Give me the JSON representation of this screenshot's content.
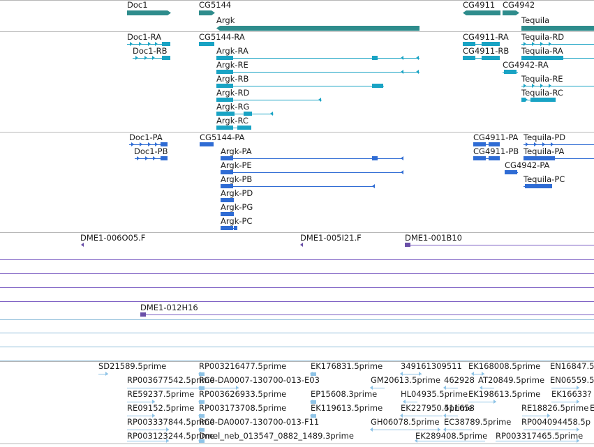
{
  "colors": {
    "gene": "#2e8c8c",
    "mrna": "#19a3c4",
    "cds": "#2f6cd4",
    "clone": "#6a4fa8",
    "clone_line": "#7a5cc2",
    "est_line": "#8fbdd9",
    "est": "#8ec3e6",
    "separator": "#b6b6b6"
  },
  "tracks": {
    "gene": {
      "features": [
        {
          "name": "Doc1"
        },
        {
          "name": "CG5144"
        },
        {
          "name": "Argk"
        },
        {
          "name": "CG4911"
        },
        {
          "name": "CG4942"
        },
        {
          "name": "Tequila"
        }
      ]
    },
    "mrna": {
      "features": [
        {
          "name": "Doc1-RA"
        },
        {
          "name": "Doc1-RB"
        },
        {
          "name": "CG5144-RA"
        },
        {
          "name": "Argk-RA"
        },
        {
          "name": "Argk-RE"
        },
        {
          "name": "Argk-RB"
        },
        {
          "name": "Argk-RD"
        },
        {
          "name": "Argk-RG"
        },
        {
          "name": "Argk-RC"
        },
        {
          "name": "CG4911-RA"
        },
        {
          "name": "CG4911-RB"
        },
        {
          "name": "CG4942-RA"
        },
        {
          "name": "Tequila-RD"
        },
        {
          "name": "Tequila-RA"
        },
        {
          "name": "Tequila-RE"
        },
        {
          "name": "Tequila-RC"
        }
      ]
    },
    "cds": {
      "features": [
        {
          "name": "Doc1-PA"
        },
        {
          "name": "Doc1-PB"
        },
        {
          "name": "CG5144-PA"
        },
        {
          "name": "Argk-PA"
        },
        {
          "name": "Argk-PE"
        },
        {
          "name": "Argk-PB"
        },
        {
          "name": "Argk-PD"
        },
        {
          "name": "Argk-PG"
        },
        {
          "name": "Argk-PC"
        },
        {
          "name": "CG4911-PA"
        },
        {
          "name": "CG4911-PB"
        },
        {
          "name": "CG4942-PA"
        },
        {
          "name": "Tequila-PD"
        },
        {
          "name": "Tequila-PA"
        },
        {
          "name": "Tequila-PC"
        }
      ]
    },
    "clones": {
      "features": [
        {
          "name": "DME1-006O05.F"
        },
        {
          "name": "DME1-005I21.F"
        },
        {
          "name": "DME1-001B10"
        },
        {
          "name": "DME1-012H16"
        }
      ]
    },
    "est": {
      "labels": [
        "SD21589.5prime",
        "RP003216477.5prime",
        "EK176831.5prime",
        "349161309511",
        "EK168008.5prime",
        "EN16847.5",
        "RP003677542.5prime",
        "RC0-DA0007-130700-013-E03",
        "GM20613.5prime",
        "462928",
        "AT20849.5prime",
        "EN06559.5",
        "RE59237.5prime",
        "RP003626933.5prime",
        "EP15608.3prime",
        "HL04935.5prime",
        "EK198613.5prime",
        "EK16633?",
        "RE09152.5prime",
        "RP003173708.5prime",
        "EK119613.5prime",
        "EK227950.5prime",
        "411658",
        "RE18826.5prime",
        "E",
        "RP003337844.5prime",
        "RC0-DA0007-130700-013-F11",
        "GH06078.5prime",
        "EC38789.5prime",
        "RP004094458.5p",
        "RP003123244.5prime",
        "Dmel_neb_013547_0882_1489.3prime",
        "EK289408.5prime",
        "RP003317465.5prime"
      ]
    }
  }
}
